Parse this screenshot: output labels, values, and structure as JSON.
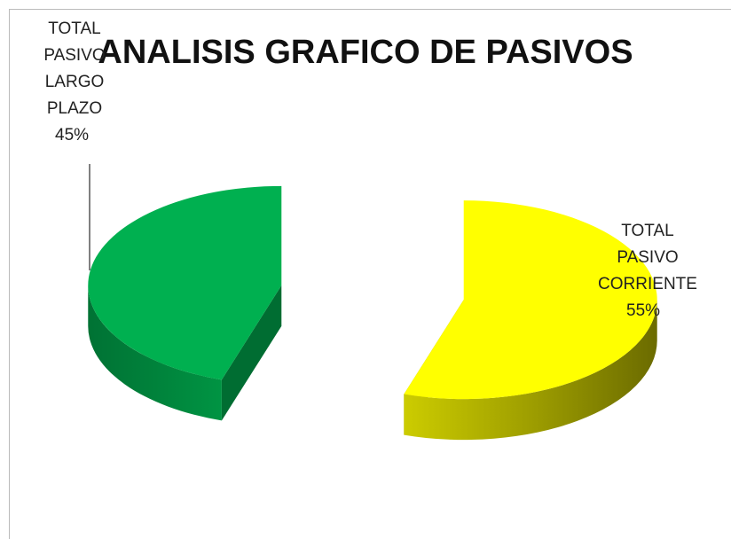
{
  "chart_data": {
    "type": "pie",
    "title": "ANALISIS GRAFICO DE PASIVOS",
    "categories": [
      "TOTAL PASIVO CORRIENTE",
      "TOTAL PASIVO LARGO PLAZO"
    ],
    "values": [
      55,
      45
    ],
    "value_labels": [
      "55%",
      "45%"
    ],
    "colors": [
      "#ffff00",
      "#00b050"
    ]
  }
}
